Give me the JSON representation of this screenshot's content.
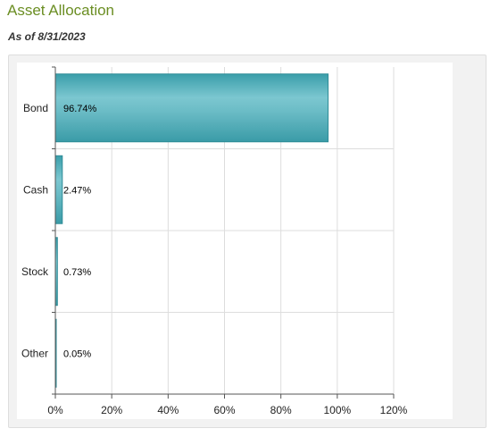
{
  "header": {
    "title": "Asset Allocation",
    "as_of": "As of 8/31/2023"
  },
  "colors": {
    "title": "#6b8e23",
    "bar_fill": "#48aab6",
    "bar_stroke": "#2f8c97",
    "grid": "#dddddd"
  },
  "chart_data": {
    "type": "bar",
    "orientation": "horizontal",
    "categories": [
      "Bond",
      "Cash",
      "Stock",
      "Other"
    ],
    "values": [
      96.74,
      2.47,
      0.73,
      0.05
    ],
    "data_labels": [
      "96.74%",
      "2.47%",
      "0.73%",
      "0.05%"
    ],
    "xlim": [
      0,
      120
    ],
    "xticks": [
      0,
      20,
      40,
      60,
      80,
      100,
      120
    ],
    "xtick_labels": [
      "0%",
      "20%",
      "40%",
      "60%",
      "80%",
      "100%",
      "120%"
    ],
    "grid": true,
    "legend": "none"
  }
}
